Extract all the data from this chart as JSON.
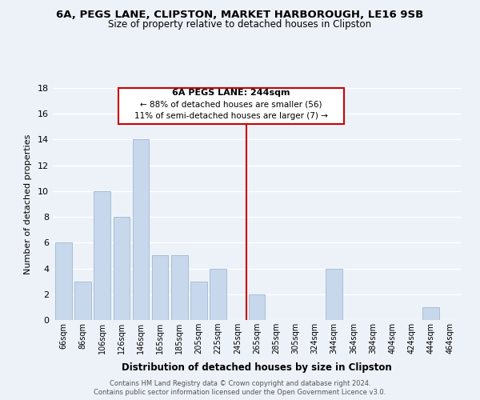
{
  "title": "6A, PEGS LANE, CLIPSTON, MARKET HARBOROUGH, LE16 9SB",
  "subtitle": "Size of property relative to detached houses in Clipston",
  "xlabel": "Distribution of detached houses by size in Clipston",
  "ylabel": "Number of detached properties",
  "bar_color": "#c8d8ec",
  "bar_edge_color": "#a8bdd6",
  "bins": [
    "66sqm",
    "86sqm",
    "106sqm",
    "126sqm",
    "146sqm",
    "165sqm",
    "185sqm",
    "205sqm",
    "225sqm",
    "245sqm",
    "265sqm",
    "285sqm",
    "305sqm",
    "324sqm",
    "344sqm",
    "364sqm",
    "384sqm",
    "404sqm",
    "424sqm",
    "444sqm",
    "464sqm"
  ],
  "values": [
    6,
    3,
    10,
    8,
    14,
    5,
    5,
    3,
    4,
    0,
    2,
    0,
    0,
    0,
    4,
    0,
    0,
    0,
    0,
    1,
    0
  ],
  "ylim": [
    0,
    18
  ],
  "yticks": [
    0,
    2,
    4,
    6,
    8,
    10,
    12,
    14,
    16,
    18
  ],
  "vline_x": 9.45,
  "vline_color": "#cc0000",
  "annotation_title": "6A PEGS LANE: 244sqm",
  "annotation_line1": "← 88% of detached houses are smaller (56)",
  "annotation_line2": "11% of semi-detached houses are larger (7) →",
  "annotation_box_edge": "#cc0000",
  "footer1": "Contains HM Land Registry data © Crown copyright and database right 2024.",
  "footer2": "Contains public sector information licensed under the Open Government Licence v3.0.",
  "background_color": "#edf2f9",
  "grid_color": "#ffffff"
}
